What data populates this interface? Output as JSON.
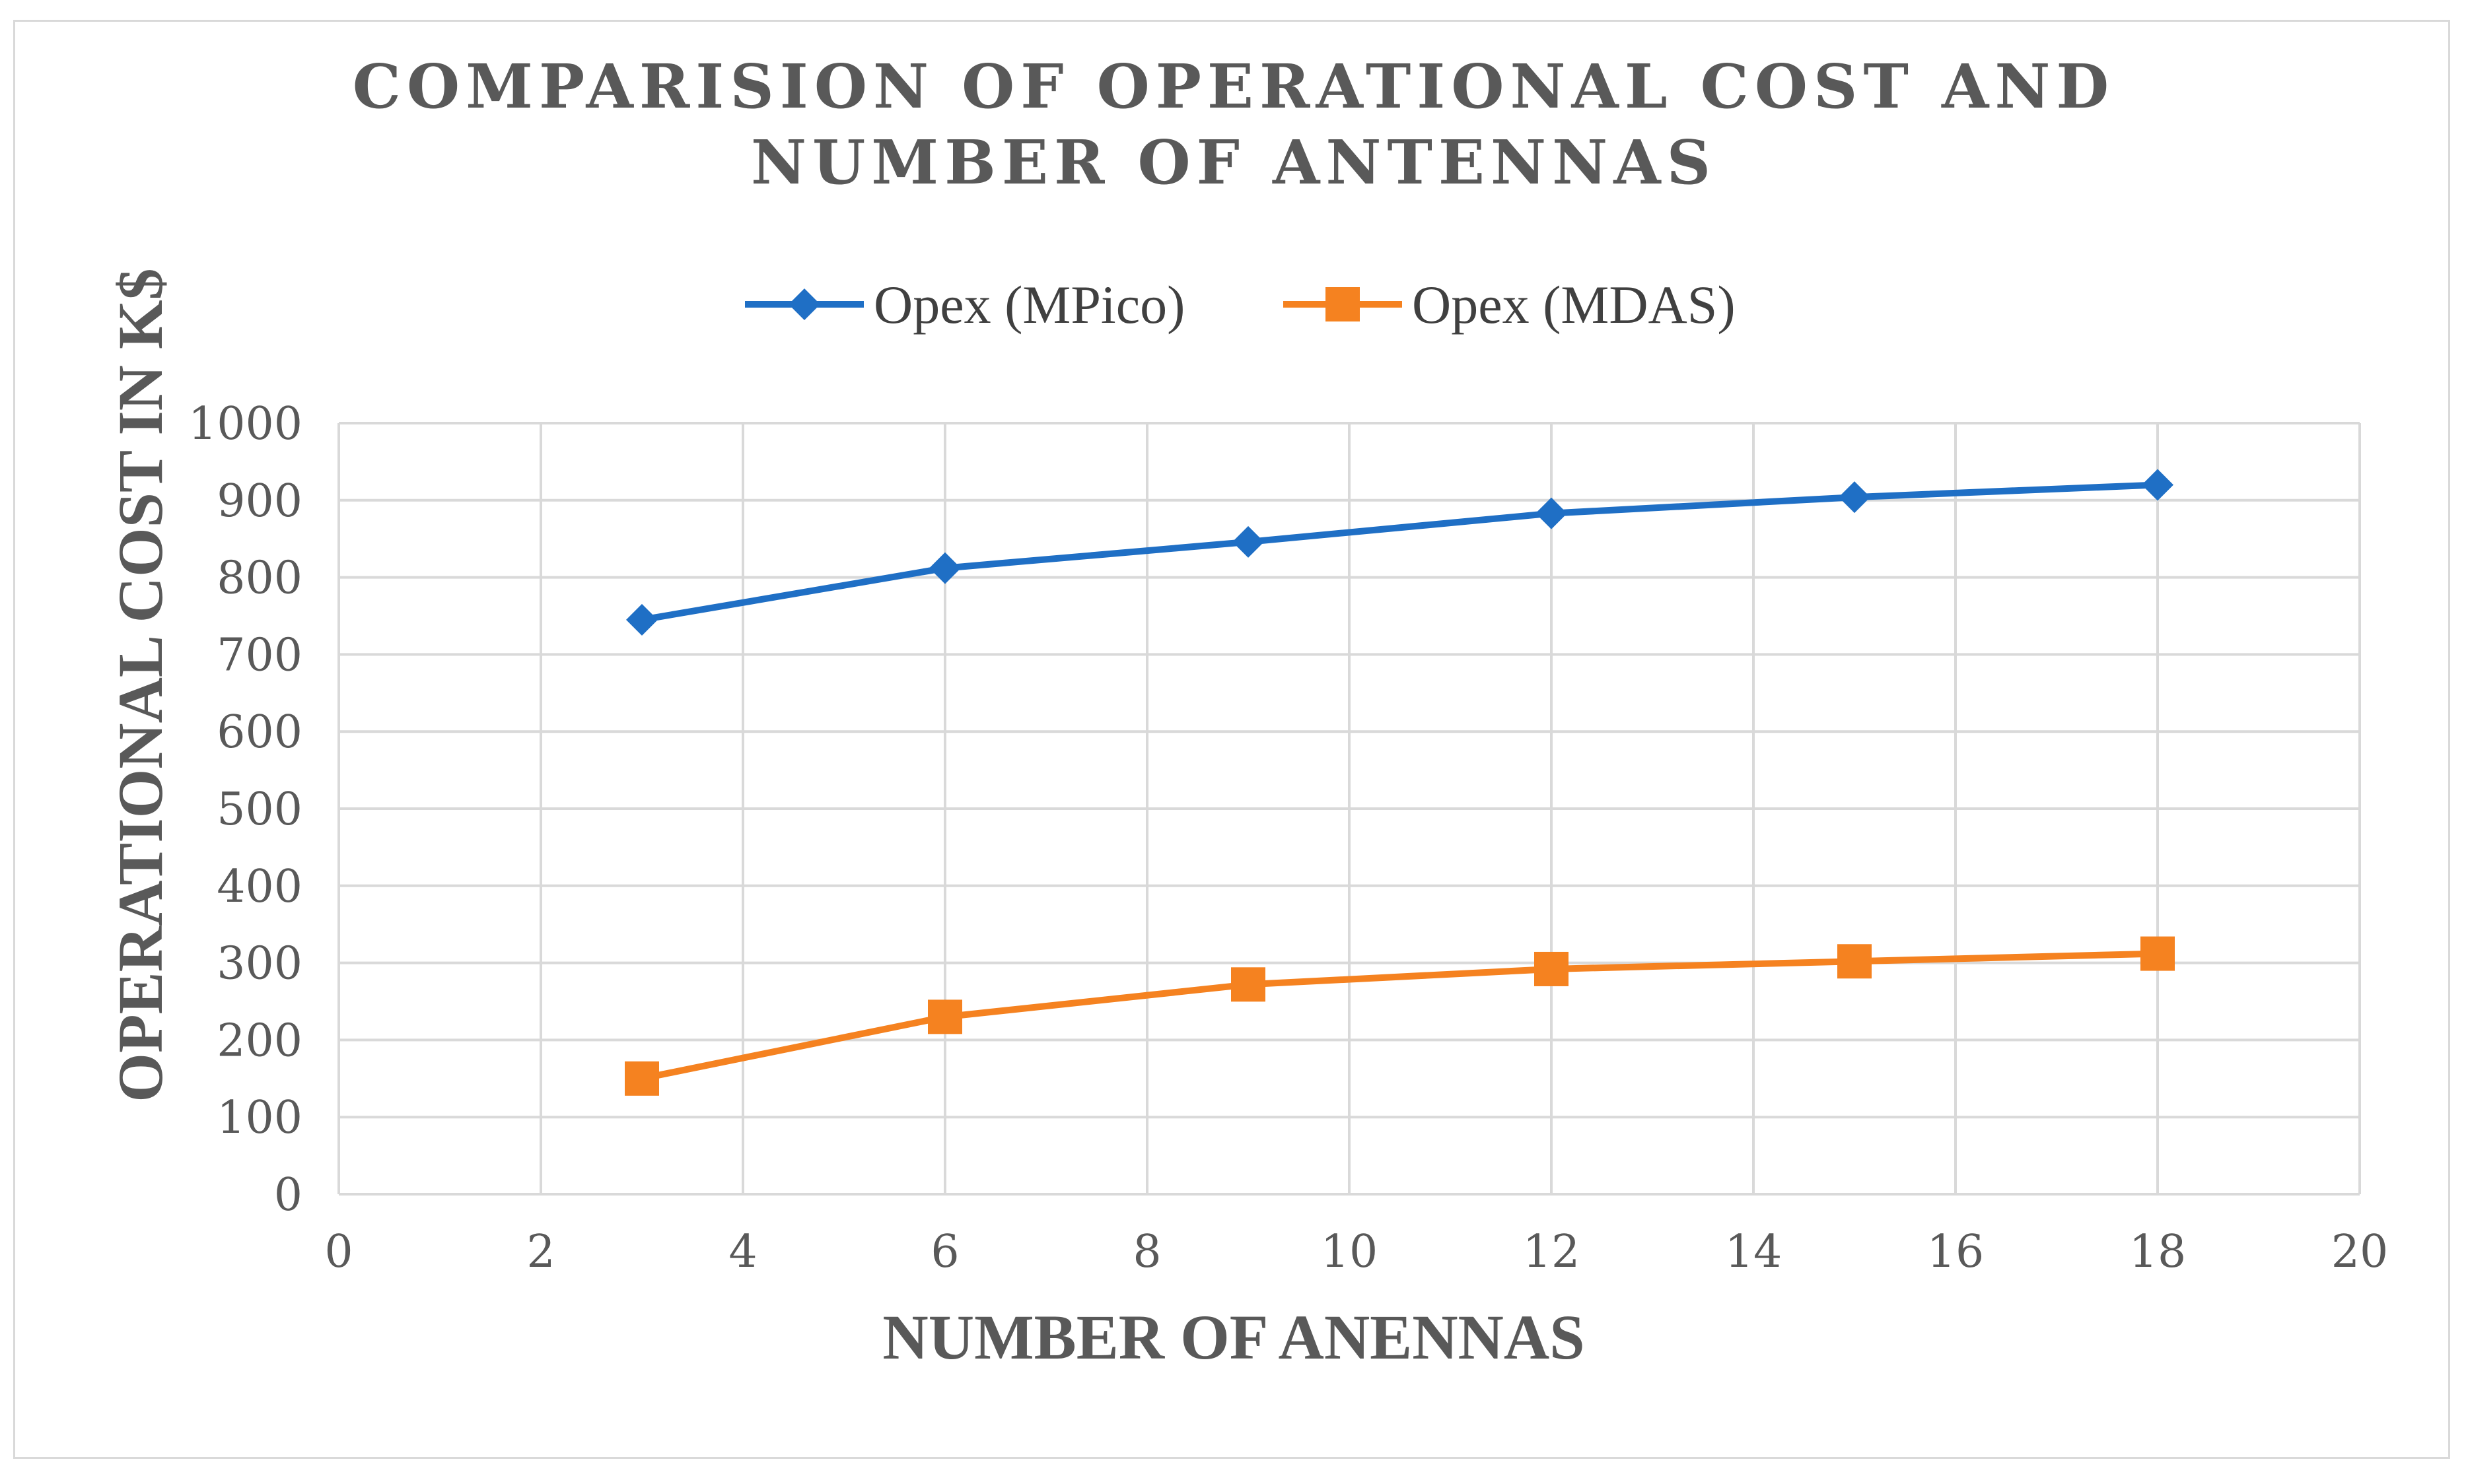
{
  "chart_data": {
    "type": "line",
    "title_lines": [
      "COMPARISION OF OPERATIONAL COST AND",
      "NUMBER OF ANTENNAS"
    ],
    "xlabel": "NUMBER OF ANENNAS",
    "ylabel": "OPERATIONAL COST IN K$",
    "xlim": [
      0,
      20
    ],
    "ylim": [
      0,
      1000
    ],
    "x_ticks": [
      0,
      2,
      4,
      6,
      8,
      10,
      12,
      14,
      16,
      18,
      20
    ],
    "y_ticks": [
      0,
      100,
      200,
      300,
      400,
      500,
      600,
      700,
      800,
      900,
      1000
    ],
    "grid": true,
    "legend_position": "top-center",
    "series": [
      {
        "name": "Opex (MPico)",
        "color": "#1f6fc5",
        "marker": "diamond",
        "x": [
          3,
          6,
          9,
          12,
          15,
          18
        ],
        "values": [
          745,
          812,
          846,
          883,
          904,
          920
        ]
      },
      {
        "name": "Opex (MDAS)",
        "color": "#f58220",
        "marker": "square",
        "x": [
          3,
          6,
          9,
          12,
          15,
          18
        ],
        "values": [
          150,
          230,
          272,
          292,
          302,
          312
        ]
      }
    ]
  }
}
